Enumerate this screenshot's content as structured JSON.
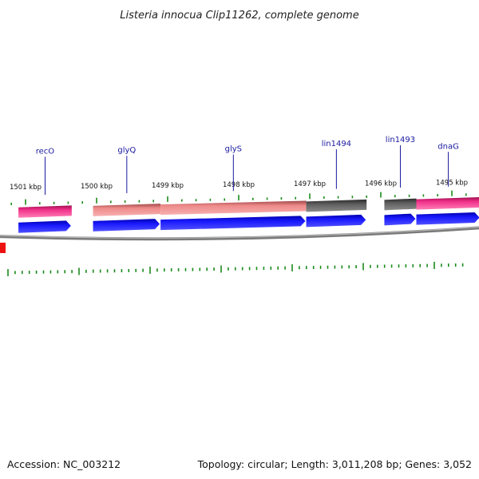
{
  "header": {
    "title": "Listeria innocua Clip11262, complete genome"
  },
  "footer": {
    "accession": "Accession: NC_003212",
    "summary": "Topology: circular; Length: 3,011,208 bp; Genes: 3,052"
  },
  "colors": {
    "gene_label": "#1a1aa0",
    "tick": "#1a8a1a",
    "feature_pink": "#e8247a",
    "feature_salmon": "#e98787",
    "feature_gray": "#5a5a5a",
    "cds_blue": "#1414e6",
    "backbone": "#808080",
    "marker_red": "#ee1111"
  },
  "diagram": {
    "kbp_labels": [
      {
        "text": "1501 kbp",
        "pos_kbp": 1501
      },
      {
        "text": "1500 kbp",
        "pos_kbp": 1500
      },
      {
        "text": "1499 kbp",
        "pos_kbp": 1499
      },
      {
        "text": "1498 kbp",
        "pos_kbp": 1498
      },
      {
        "text": "1497 kbp",
        "pos_kbp": 1497
      },
      {
        "text": "1496 kbp",
        "pos_kbp": 1496
      },
      {
        "text": "1495 kbp",
        "pos_kbp": 1495
      }
    ],
    "genes": [
      {
        "label": "recO",
        "color": "pink",
        "start_kbp": 1501.1,
        "end_kbp": 1500.35
      },
      {
        "label": "glyQ",
        "color": "salmon",
        "start_kbp": 1500.05,
        "end_kbp": 1499.1
      },
      {
        "label": "glyS",
        "color": "salmon",
        "start_kbp": 1499.1,
        "end_kbp": 1497.05
      },
      {
        "label": "lin1494",
        "color": "gray",
        "start_kbp": 1497.05,
        "end_kbp": 1496.2
      },
      {
        "label": "lin1493",
        "color": "gray",
        "start_kbp": 1495.95,
        "end_kbp": 1495.5
      },
      {
        "label": "dnaG",
        "color": "pink",
        "start_kbp": 1495.5,
        "end_kbp": 1494.6
      }
    ]
  }
}
